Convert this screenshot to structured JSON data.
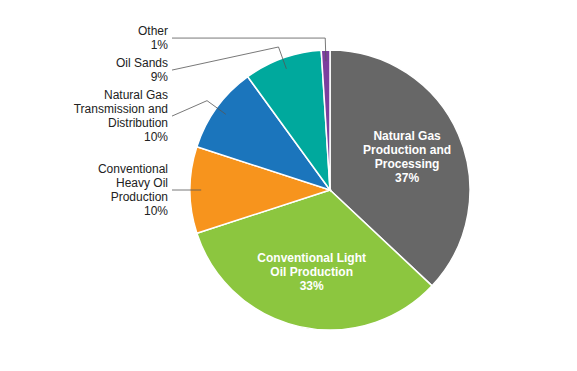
{
  "chart_data": {
    "type": "pie",
    "categories": [
      "Natural Gas\nProduction and\nProcessing",
      "Conventional Light\nOil Production",
      "Conventional\nHeavy Oil\nProduction",
      "Natural Gas\nTransmission and\nDistribution",
      "Oil Sands",
      "Other"
    ],
    "values": [
      37,
      33,
      10,
      10,
      9,
      1
    ],
    "value_labels": [
      "37%",
      "33%",
      "10%",
      "10%",
      "9%",
      "1%"
    ],
    "colors": [
      "#676767",
      "#8cc63f",
      "#f7941d",
      "#1b75bc",
      "#00a99d",
      "#7b3f9e"
    ],
    "data_labels": true
  }
}
